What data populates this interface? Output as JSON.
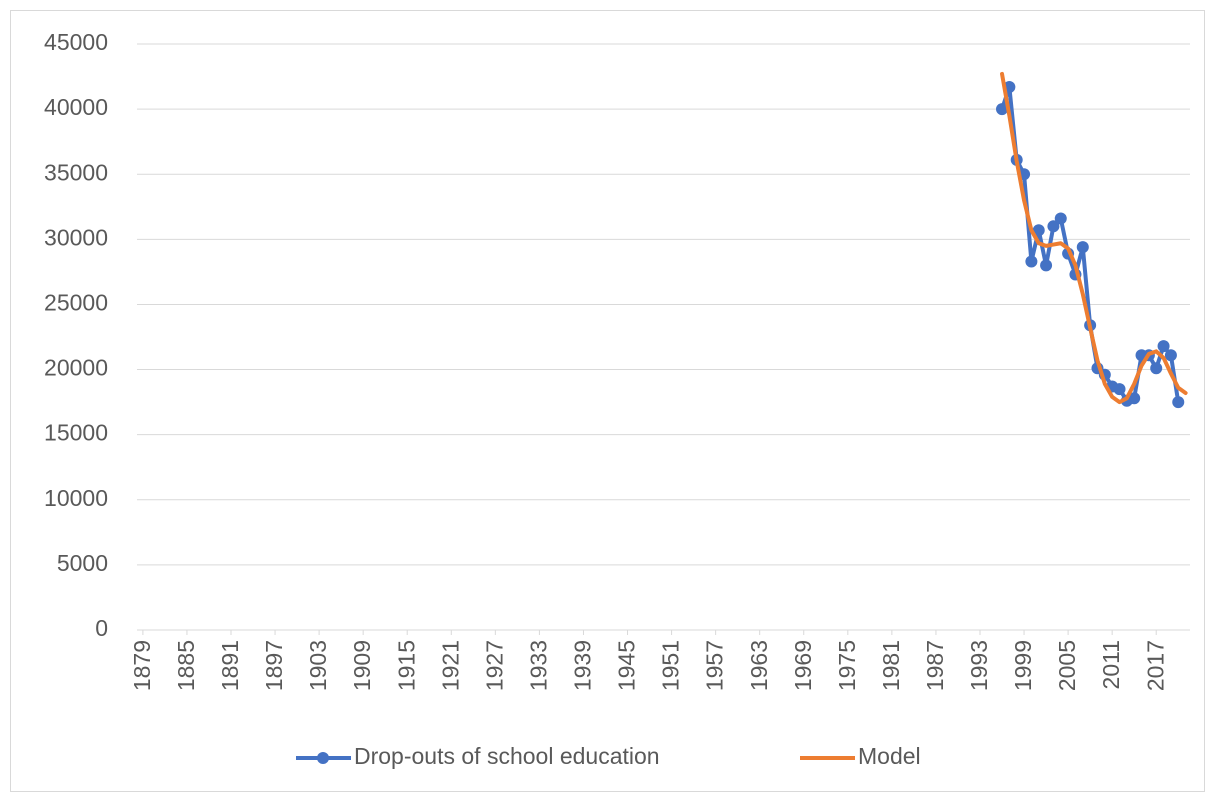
{
  "chart_data": {
    "type": "line",
    "x": [
      1996,
      1997,
      1998,
      1999,
      2000,
      2001,
      2002,
      2003,
      2004,
      2005,
      2006,
      2007,
      2008,
      2009,
      2010,
      2011,
      2012,
      2013,
      2014,
      2015,
      2016,
      2017,
      2018,
      2019,
      2020,
      2021
    ],
    "series": [
      {
        "name": "Drop-outs of school education",
        "color": "#4472c4",
        "markers": true,
        "values": [
          40000,
          41700,
          36100,
          35000,
          28300,
          30700,
          28000,
          31000,
          31600,
          28900,
          27300,
          29400,
          23400,
          20100,
          19600,
          18700,
          18500,
          17600,
          17800,
          21100,
          21100,
          20100,
          21800,
          21100,
          17500,
          null
        ]
      },
      {
        "name": "Model",
        "color": "#ed7d31",
        "markers": false,
        "values": [
          42700,
          39500,
          36000,
          33000,
          30700,
          29700,
          29500,
          29600,
          29700,
          29300,
          28000,
          25800,
          23200,
          20700,
          18900,
          17900,
          17500,
          17800,
          18900,
          20300,
          21200,
          21400,
          20900,
          19700,
          18600,
          18200
        ]
      }
    ],
    "xlim": [
      1878.2,
      2021.6
    ],
    "xticks": [
      1879,
      1885,
      1891,
      1897,
      1903,
      1909,
      1915,
      1921,
      1927,
      1933,
      1939,
      1945,
      1951,
      1957,
      1963,
      1969,
      1975,
      1981,
      1987,
      1993,
      1999,
      2005,
      2011,
      2017
    ],
    "ylim": [
      0,
      45000
    ],
    "yticks": [
      0,
      5000,
      10000,
      15000,
      20000,
      25000,
      30000,
      35000,
      40000,
      45000
    ],
    "grid": true,
    "legend": "bottom"
  }
}
